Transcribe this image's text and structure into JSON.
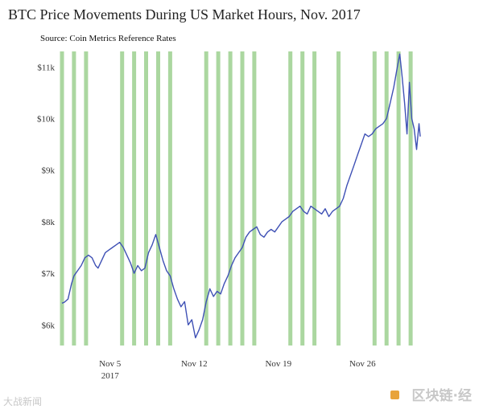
{
  "chart_data": {
    "type": "line",
    "title": "BTC Price Movements During US Market Hours, Nov. 2017",
    "subtitle": "Source: Coin Metrics Reference Rates",
    "xlabel": "",
    "ylabel": "",
    "x_range_days": [
      1,
      30.8
    ],
    "ylim": [
      5600,
      11300
    ],
    "y_ticks": [
      {
        "value": 6000,
        "label": "$6k"
      },
      {
        "value": 7000,
        "label": "$7k"
      },
      {
        "value": 8000,
        "label": "$8k"
      },
      {
        "value": 9000,
        "label": "$9k"
      },
      {
        "value": 10000,
        "label": "$10k"
      },
      {
        "value": 11000,
        "label": "$11k"
      }
    ],
    "x_ticks": [
      {
        "value": 5,
        "label": "Nov 5",
        "sublabel": "2017"
      },
      {
        "value": 12,
        "label": "Nov 12",
        "sublabel": ""
      },
      {
        "value": 19,
        "label": "Nov 19",
        "sublabel": ""
      },
      {
        "value": 26,
        "label": "Nov 26",
        "sublabel": ""
      }
    ],
    "market_hours_days": [
      1,
      2,
      3,
      6,
      7,
      8,
      9,
      10,
      13,
      14,
      15,
      16,
      17,
      20,
      21,
      22,
      24,
      27,
      28,
      29,
      30
    ],
    "series": [
      {
        "name": "BTC price",
        "color": "#3f51b5",
        "x": [
          1.0,
          1.2,
          1.5,
          1.8,
          2.0,
          2.3,
          2.6,
          2.9,
          3.2,
          3.5,
          3.8,
          4.0,
          4.3,
          4.6,
          4.9,
          5.2,
          5.5,
          5.8,
          6.1,
          6.4,
          6.7,
          7.0,
          7.3,
          7.6,
          7.9,
          8.2,
          8.5,
          8.8,
          9.1,
          9.4,
          9.7,
          10.0,
          10.3,
          10.6,
          10.9,
          11.2,
          11.5,
          11.8,
          12.1,
          12.4,
          12.7,
          13.0,
          13.3,
          13.6,
          13.9,
          14.2,
          14.5,
          14.8,
          15.1,
          15.4,
          15.7,
          16.0,
          16.3,
          16.6,
          16.9,
          17.2,
          17.5,
          17.8,
          18.1,
          18.4,
          18.7,
          19.0,
          19.3,
          19.6,
          19.9,
          20.2,
          20.5,
          20.8,
          21.1,
          21.4,
          21.7,
          22.0,
          22.3,
          22.6,
          22.9,
          23.2,
          23.5,
          23.8,
          24.1,
          24.4,
          24.7,
          25.0,
          25.3,
          25.6,
          25.9,
          26.2,
          26.5,
          26.8,
          27.1,
          27.4,
          27.7,
          28.0,
          28.3,
          28.6,
          28.9,
          29.1,
          29.3,
          29.5,
          29.7,
          29.9,
          30.1,
          30.3,
          30.5,
          30.7,
          30.8
        ],
        "values": [
          6420,
          6440,
          6500,
          6800,
          6950,
          7050,
          7150,
          7300,
          7350,
          7300,
          7150,
          7100,
          7250,
          7400,
          7450,
          7500,
          7550,
          7600,
          7500,
          7350,
          7200,
          7000,
          7150,
          7050,
          7100,
          7400,
          7550,
          7750,
          7500,
          7250,
          7050,
          6950,
          6700,
          6500,
          6350,
          6450,
          6000,
          6100,
          5750,
          5900,
          6100,
          6450,
          6700,
          6550,
          6650,
          6600,
          6800,
          6950,
          7150,
          7300,
          7400,
          7500,
          7700,
          7800,
          7850,
          7900,
          7750,
          7700,
          7800,
          7850,
          7800,
          7900,
          8000,
          8050,
          8100,
          8200,
          8250,
          8300,
          8200,
          8150,
          8300,
          8250,
          8200,
          8150,
          8250,
          8100,
          8200,
          8250,
          8300,
          8450,
          8700,
          8900,
          9100,
          9300,
          9500,
          9700,
          9650,
          9700,
          9800,
          9850,
          9900,
          10000,
          10300,
          10600,
          11000,
          11250,
          10800,
          10300,
          9700,
          10700,
          10000,
          9800,
          9400,
          9900,
          9650
        ]
      }
    ]
  },
  "watermarks": {
    "left": "大战新闻",
    "right": "区块链·经"
  }
}
